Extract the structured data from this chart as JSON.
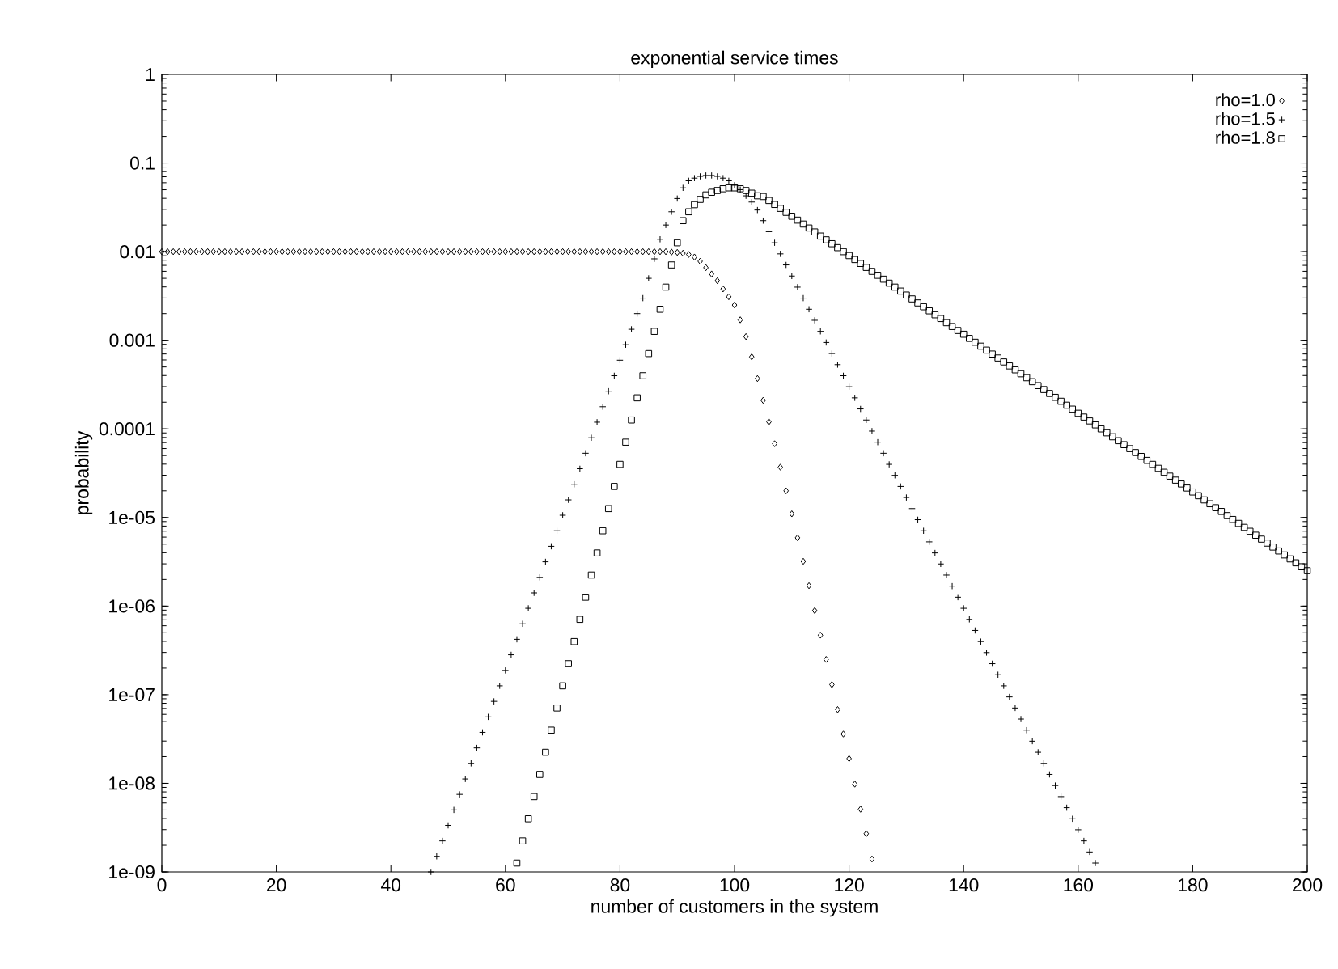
{
  "chart_data": {
    "type": "scatter",
    "title": "exponential service times",
    "xlabel": "number of customers in the system",
    "ylabel": "probability",
    "xlim": [
      0,
      200
    ],
    "ylim": [
      1e-09,
      1
    ],
    "log": "y",
    "legend": "top right",
    "xticks": [
      0,
      20,
      40,
      60,
      80,
      100,
      120,
      140,
      160,
      180,
      200
    ],
    "yticks": [
      {
        "value": 1e-09,
        "label": "1e-09"
      },
      {
        "value": 1e-08,
        "label": "1e-08"
      },
      {
        "value": 1e-07,
        "label": "1e-07"
      },
      {
        "value": 1e-06,
        "label": "1e-06"
      },
      {
        "value": 1e-05,
        "label": "1e-05"
      },
      {
        "value": 0.0001,
        "label": "0.0001"
      },
      {
        "value": 0.001,
        "label": "0.001"
      },
      {
        "value": 0.01,
        "label": "0.01"
      },
      {
        "value": 0.1,
        "label": "0.1"
      },
      {
        "value": 1,
        "label": "1"
      }
    ],
    "series": [
      {
        "name": "rho=1.0",
        "color": "#000000",
        "marker": "diamond",
        "x": [
          0,
          1,
          2,
          3,
          4,
          5,
          6,
          7,
          8,
          9,
          10,
          11,
          12,
          13,
          14,
          15,
          16,
          17,
          18,
          19,
          20,
          21,
          22,
          23,
          24,
          25,
          26,
          27,
          28,
          29,
          30,
          31,
          32,
          33,
          34,
          35,
          36,
          37,
          38,
          39,
          40,
          41,
          42,
          43,
          44,
          45,
          46,
          47,
          48,
          49,
          50,
          51,
          52,
          53,
          54,
          55,
          56,
          57,
          58,
          59,
          60,
          61,
          62,
          63,
          64,
          65,
          66,
          67,
          68,
          69,
          70,
          71,
          72,
          73,
          74,
          75,
          76,
          77,
          78,
          79,
          80,
          81,
          82,
          83,
          84,
          85,
          86,
          87,
          88,
          89,
          90,
          91,
          92,
          93,
          94,
          95,
          96,
          97,
          98,
          99,
          100,
          101,
          102,
          103,
          104,
          105,
          106,
          107,
          108,
          109,
          110,
          111,
          112,
          113,
          114,
          115,
          116,
          117,
          118,
          119,
          120,
          121,
          122,
          123,
          124
        ],
        "values": [
          0.01,
          0.01,
          0.01,
          0.01,
          0.01,
          0.01,
          0.01,
          0.01,
          0.01,
          0.01,
          0.01,
          0.01,
          0.01,
          0.01,
          0.01,
          0.01,
          0.01,
          0.01,
          0.01,
          0.01,
          0.01,
          0.01,
          0.01,
          0.01,
          0.01,
          0.01,
          0.01,
          0.01,
          0.01,
          0.01,
          0.01,
          0.01,
          0.01,
          0.01,
          0.01,
          0.01,
          0.01,
          0.01,
          0.01,
          0.01,
          0.01,
          0.01,
          0.01,
          0.01,
          0.01,
          0.01,
          0.01,
          0.01,
          0.01,
          0.01,
          0.01,
          0.01,
          0.01,
          0.01,
          0.01,
          0.01,
          0.01,
          0.01,
          0.01,
          0.01,
          0.01,
          0.01,
          0.01,
          0.01,
          0.01,
          0.01,
          0.01,
          0.01,
          0.01,
          0.01,
          0.01,
          0.01,
          0.01,
          0.01,
          0.01,
          0.01,
          0.01,
          0.01,
          0.01,
          0.01,
          0.01,
          0.01,
          0.01,
          0.01,
          0.01,
          0.01,
          0.01,
          0.01,
          0.01,
          0.0099,
          0.0098,
          0.0096,
          0.0093,
          0.0087,
          0.0078,
          0.0066,
          0.0056,
          0.0047,
          0.0038,
          0.0031,
          0.0025,
          0.0017,
          0.0011,
          0.00065,
          0.00037,
          0.00021,
          0.00012,
          6.8e-05,
          3.7e-05,
          2e-05,
          1.1e-05,
          5.9e-06,
          3.2e-06,
          1.7e-06,
          8.9e-07,
          4.7e-07,
          2.5e-07,
          1.3e-07,
          6.8e-08,
          3.6e-08,
          1.9e-08,
          9.8e-09,
          5.1e-09,
          2.7e-09,
          1.4e-09
        ]
      },
      {
        "name": "rho=1.5",
        "color": "#000000",
        "marker": "cross",
        "x": [
          47,
          48,
          49,
          50,
          51,
          52,
          53,
          54,
          55,
          56,
          57,
          58,
          59,
          60,
          61,
          62,
          63,
          64,
          65,
          66,
          67,
          68,
          69,
          70,
          71,
          72,
          73,
          74,
          75,
          76,
          77,
          78,
          79,
          80,
          81,
          82,
          83,
          84,
          85,
          86,
          87,
          88,
          89,
          90,
          91,
          92,
          93,
          94,
          95,
          96,
          97,
          98,
          99,
          100,
          101,
          102,
          103,
          104,
          105,
          106,
          107,
          108,
          109,
          110,
          111,
          112,
          113,
          114,
          115,
          116,
          117,
          118,
          119,
          120,
          121,
          122,
          123,
          124,
          125,
          126,
          127,
          128,
          129,
          130,
          131,
          132,
          133,
          134,
          135,
          136,
          137,
          138,
          139,
          140,
          141,
          142,
          143,
          144,
          145,
          146,
          147,
          148,
          149,
          150,
          151,
          152,
          153,
          154,
          155,
          156,
          157,
          158,
          159,
          160,
          161,
          162,
          163
        ],
        "values": [
          1e-09,
          1.5e-09,
          2.24e-09,
          3.35e-09,
          5.01e-09,
          7.5e-09,
          1.12e-08,
          1.68e-08,
          2.51e-08,
          3.76e-08,
          5.62e-08,
          8.41e-08,
          1.26e-07,
          1.88e-07,
          2.82e-07,
          4.22e-07,
          6.31e-07,
          9.44e-07,
          1.41e-06,
          2.11e-06,
          3.16e-06,
          4.73e-06,
          7.08e-06,
          1.06e-05,
          1.58e-05,
          2.37e-05,
          3.55e-05,
          5.31e-05,
          7.94e-05,
          0.000119,
          0.000178,
          0.000266,
          0.000398,
          0.000596,
          0.000891,
          0.00133,
          0.002,
          0.00299,
          0.005,
          0.0083,
          0.0138,
          0.02,
          0.0282,
          0.0398,
          0.0525,
          0.0631,
          0.0676,
          0.0708,
          0.0724,
          0.0724,
          0.0708,
          0.0676,
          0.0631,
          0.0562,
          0.0501,
          0.0427,
          0.0363,
          0.0295,
          0.0224,
          0.0168,
          0.0126,
          0.00944,
          0.00708,
          0.00531,
          0.00398,
          0.00299,
          0.00224,
          0.00168,
          0.00126,
          0.000944,
          0.000708,
          0.000531,
          0.000398,
          0.000299,
          0.000224,
          0.000168,
          0.000126,
          9.44e-05,
          7.08e-05,
          5.31e-05,
          3.98e-05,
          2.99e-05,
          2.24e-05,
          1.68e-05,
          1.26e-05,
          9.44e-06,
          7.08e-06,
          5.31e-06,
          3.98e-06,
          2.99e-06,
          2.24e-06,
          1.68e-06,
          1.26e-06,
          9.44e-07,
          7.08e-07,
          5.31e-07,
          3.98e-07,
          2.99e-07,
          2.24e-07,
          1.68e-07,
          1.26e-07,
          9.44e-08,
          7.08e-08,
          5.31e-08,
          3.98e-08,
          2.99e-08,
          2.24e-08,
          1.68e-08,
          1.26e-08,
          9.44e-09,
          7.08e-09,
          5.31e-09,
          3.98e-09,
          2.99e-09,
          2.24e-09,
          1.68e-09,
          1.26e-09
        ]
      },
      {
        "name": "rho=1.8",
        "color": "#000000",
        "marker": "square",
        "x": [
          62,
          63,
          64,
          65,
          66,
          67,
          68,
          69,
          70,
          71,
          72,
          73,
          74,
          75,
          76,
          77,
          78,
          79,
          80,
          81,
          82,
          83,
          84,
          85,
          86,
          87,
          88,
          89,
          90,
          91,
          92,
          93,
          94,
          95,
          96,
          97,
          98,
          99,
          100,
          101,
          102,
          103,
          104,
          105,
          106,
          107,
          108,
          109,
          110,
          111,
          112,
          113,
          114,
          115,
          116,
          117,
          118,
          119,
          120,
          121,
          122,
          123,
          124,
          125,
          126,
          127,
          128,
          129,
          130,
          131,
          132,
          133,
          134,
          135,
          136,
          137,
          138,
          139,
          140,
          141,
          142,
          143,
          144,
          145,
          146,
          147,
          148,
          149,
          150,
          151,
          152,
          153,
          154,
          155,
          156,
          157,
          158,
          159,
          160,
          161,
          162,
          163,
          164,
          165,
          166,
          167,
          168,
          169,
          170,
          171,
          172,
          173,
          174,
          175,
          176,
          177,
          178,
          179,
          180,
          181,
          182,
          183,
          184,
          185,
          186,
          187,
          188,
          189,
          190,
          191,
          192,
          193,
          194,
          195,
          196,
          197,
          198,
          199,
          200
        ],
        "values": [
          1.26e-09,
          2.24e-09,
          3.98e-09,
          7.08e-09,
          1.26e-08,
          2.24e-08,
          3.98e-08,
          7.08e-08,
          1.26e-07,
          2.24e-07,
          3.98e-07,
          7.08e-07,
          1.26e-06,
          2.24e-06,
          3.98e-06,
          7.08e-06,
          1.26e-05,
          2.24e-05,
          3.98e-05,
          7.08e-05,
          0.000126,
          0.000224,
          0.000398,
          0.000708,
          0.00126,
          0.00224,
          0.00398,
          0.00708,
          0.0126,
          0.0224,
          0.0282,
          0.0339,
          0.0389,
          0.0437,
          0.0468,
          0.049,
          0.0513,
          0.0525,
          0.0525,
          0.0513,
          0.049,
          0.0457,
          0.0427,
          0.0419,
          0.0378,
          0.0341,
          0.0308,
          0.0278,
          0.0251,
          0.0227,
          0.0205,
          0.0185,
          0.0167,
          0.015,
          0.0136,
          0.0123,
          0.0111,
          0.01,
          0.00903,
          0.00815,
          0.00736,
          0.00664,
          0.00599,
          0.00541,
          0.00489,
          0.00441,
          0.00398,
          0.00359,
          0.00324,
          0.00293,
          0.00264,
          0.00239,
          0.00215,
          0.00194,
          0.00176,
          0.00158,
          0.00143,
          0.00129,
          0.00117,
          0.00105,
          0.00095,
          0.000858,
          0.000774,
          0.000699,
          0.000631,
          0.00057,
          0.000514,
          0.000464,
          0.000419,
          0.000378,
          0.000341,
          0.000308,
          0.000278,
          0.000251,
          0.000227,
          0.000205,
          0.000185,
          0.000167,
          0.00015,
          0.000136,
          0.000123,
          0.000111,
          0.0001,
          9.03e-05,
          8.15e-05,
          7.36e-05,
          6.64e-05,
          5.99e-05,
          5.41e-05,
          4.89e-05,
          4.41e-05,
          3.98e-05,
          3.59e-05,
          3.24e-05,
          2.93e-05,
          2.64e-05,
          2.39e-05,
          2.15e-05,
          1.94e-05,
          1.76e-05,
          1.58e-05,
          1.43e-05,
          1.29e-05,
          1.17e-05,
          1.05e-05,
          9.5e-06,
          8.58e-06,
          7.74e-06,
          6.99e-06,
          6.31e-06,
          5.7e-06,
          5.14e-06,
          4.64e-06,
          4.19e-06,
          3.78e-06,
          3.41e-06,
          3.08e-06,
          2.78e-06,
          2.51e-06
        ]
      }
    ]
  }
}
